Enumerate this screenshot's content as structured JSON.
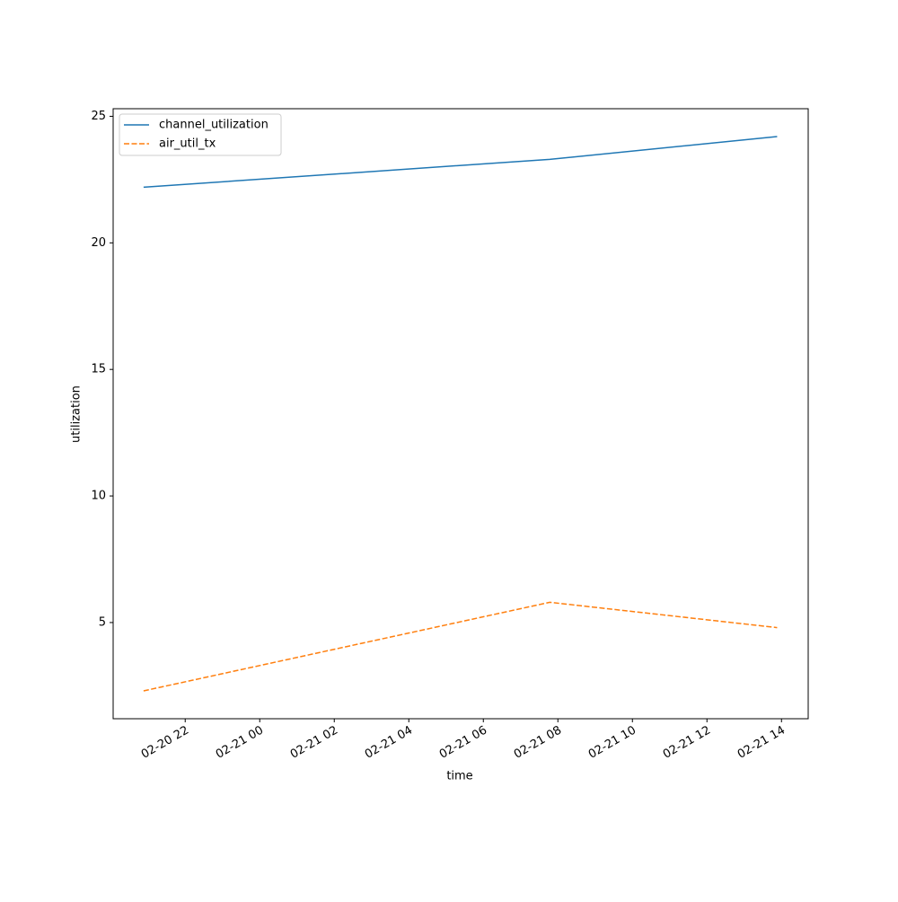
{
  "chart_data": {
    "type": "line",
    "x_label": "time",
    "y_label": "utilization",
    "x": [
      "02-20 20:53",
      "02-21 07:47",
      "02-21 13:53"
    ],
    "series": [
      {
        "name": "channel_utilization",
        "color": "#1f77b4",
        "linestyle": "solid",
        "values": [
          22.2,
          23.3,
          24.2
        ]
      },
      {
        "name": "air_util_tx",
        "color": "#ff7f0e",
        "linestyle": "dashed",
        "values": [
          2.3,
          5.8,
          4.8
        ]
      }
    ],
    "xlim": [
      "02-20 20:04",
      "02-21 14:43"
    ],
    "xticks": [
      "02-20 22",
      "02-21 00",
      "02-21 02",
      "02-21 04",
      "02-21 06",
      "02-21 08",
      "02-21 10",
      "02-21 12",
      "02-21 14"
    ],
    "ylim": [
      1.2,
      25.3
    ],
    "yticks": [
      5,
      10,
      15,
      20,
      25
    ],
    "legend": "upper left",
    "grid": false
  }
}
